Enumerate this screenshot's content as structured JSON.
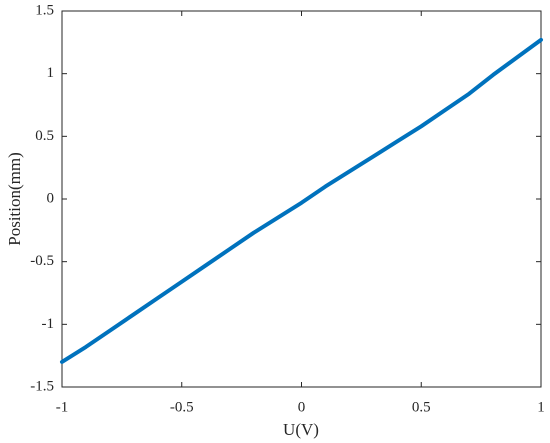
{
  "chart_data": {
    "type": "line",
    "x_label": "U(V)",
    "y_label": "Position(mm)",
    "x": [
      -1,
      -0.9,
      -0.8,
      -0.7,
      -0.6,
      -0.5,
      -0.4,
      -0.3,
      -0.2,
      -0.1,
      0,
      0.1,
      0.2,
      0.3,
      0.4,
      0.5,
      0.6,
      0.7,
      0.8,
      0.9,
      1
    ],
    "series": [
      {
        "color": "#0072bd",
        "values": [
          -1.3,
          -1.18,
          -1.05,
          -0.92,
          -0.79,
          -0.66,
          -0.53,
          -0.4,
          -0.27,
          -0.15,
          -0.03,
          0.1,
          0.22,
          0.34,
          0.46,
          0.58,
          0.71,
          0.84,
          0.99,
          1.13,
          1.27
        ]
      }
    ],
    "xlim": [
      -1,
      1
    ],
    "xticks": [
      -1,
      -0.5,
      0,
      0.5,
      1
    ],
    "ylim": [
      -1.5,
      1.5
    ],
    "yticks": [
      -1.5,
      -1,
      -0.5,
      0,
      0.5,
      1,
      1.5
    ],
    "grid": false
  }
}
